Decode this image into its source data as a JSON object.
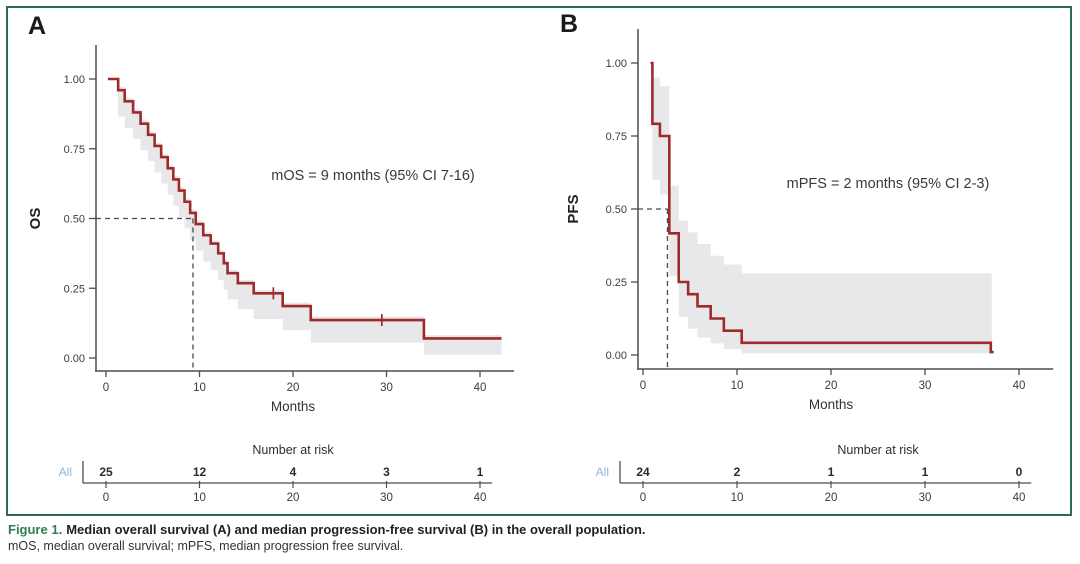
{
  "figure": {
    "caption": {
      "label": "Figure 1.",
      "title": "Median overall survival (A) and median progression-free survival (B) in the overall population.",
      "subtitle": "mOS, median overall survival; mPFS, median progression free survival."
    },
    "colors": {
      "border": "#2c6b50",
      "caption_label": "#2e7d4f",
      "curve": "#9e2a2b",
      "band": "#e8e8ea",
      "axis": "#4d4d4d",
      "text": "#3c3c3c",
      "risk_value": "#2b2b2b",
      "risk_group": "#92b4d8",
      "dashed": "#4a4a4a"
    }
  },
  "chart_data": [
    {
      "type": "line",
      "subtype": "kaplan-meier-step",
      "panel_label": "A",
      "ylabel": "OS",
      "xlabel": "Months",
      "annotation": "mOS = 9 months (95% CI 7-16)",
      "xlim": [
        0,
        43
      ],
      "ylim": [
        0,
        1
      ],
      "xticks": [
        0,
        10,
        20,
        30,
        40
      ],
      "xtick_labels": [
        "0",
        "10",
        "20",
        "30",
        "40"
      ],
      "ytick_vals": [
        1.0,
        0.75,
        0.5,
        0.25,
        0.0
      ],
      "ytick_labels": [
        "1.00",
        "0.75",
        "0.50",
        "0.25",
        "0.00"
      ],
      "median_time": 9,
      "median_survival": 0.5,
      "median_line_time": 9.3,
      "steps": [
        [
          0.2,
          1.0
        ],
        [
          1.3,
          0.96
        ],
        [
          2.0,
          0.92
        ],
        [
          2.9,
          0.88
        ],
        [
          3.7,
          0.84
        ],
        [
          4.5,
          0.8
        ],
        [
          5.2,
          0.76
        ],
        [
          5.9,
          0.72
        ],
        [
          6.6,
          0.68
        ],
        [
          7.2,
          0.64
        ],
        [
          7.8,
          0.6
        ],
        [
          8.4,
          0.56
        ],
        [
          9.0,
          0.52
        ],
        [
          9.6,
          0.48
        ],
        [
          10.4,
          0.44
        ],
        [
          11.2,
          0.41
        ],
        [
          12.0,
          0.375
        ],
        [
          12.6,
          0.34
        ],
        [
          13.0,
          0.304
        ],
        [
          14.1,
          0.268
        ],
        [
          15.8,
          0.232
        ],
        [
          18.9,
          0.186
        ],
        [
          21.9,
          0.136
        ],
        [
          34.0,
          0.07
        ]
      ],
      "end_time": 42.3,
      "censor_marks": [
        [
          17.9,
          0.232
        ],
        [
          29.5,
          0.136
        ]
      ],
      "ci_band": [
        [
          0.2,
          1.0,
          1.0
        ],
        [
          1.3,
          0.865,
          0.972
        ],
        [
          2.0,
          0.825,
          0.932
        ],
        [
          2.9,
          0.785,
          0.892
        ],
        [
          3.7,
          0.745,
          0.852
        ],
        [
          4.5,
          0.705,
          0.812
        ],
        [
          5.2,
          0.665,
          0.772
        ],
        [
          5.9,
          0.625,
          0.732
        ],
        [
          6.6,
          0.585,
          0.692
        ],
        [
          7.2,
          0.545,
          0.652
        ],
        [
          7.8,
          0.505,
          0.612
        ],
        [
          8.4,
          0.465,
          0.572
        ],
        [
          9.0,
          0.425,
          0.532
        ],
        [
          9.6,
          0.385,
          0.492
        ],
        [
          10.4,
          0.345,
          0.452
        ],
        [
          11.2,
          0.315,
          0.422
        ],
        [
          12.0,
          0.28,
          0.387
        ],
        [
          12.6,
          0.245,
          0.352
        ],
        [
          13.0,
          0.21,
          0.316
        ],
        [
          14.1,
          0.175,
          0.28
        ],
        [
          15.8,
          0.14,
          0.244
        ],
        [
          18.9,
          0.1,
          0.198
        ],
        [
          21.9,
          0.055,
          0.148
        ],
        [
          34.0,
          0.012,
          0.082
        ]
      ],
      "band_end": 42.3,
      "number_at_risk": {
        "title": "Number at risk",
        "group": "All",
        "times": [
          0,
          10,
          20,
          30,
          40
        ],
        "values": [
          "25",
          "12",
          "4",
          "3",
          "1"
        ],
        "axis_labels": [
          "0",
          "10",
          "20",
          "30",
          "40"
        ]
      }
    },
    {
      "type": "line",
      "subtype": "kaplan-meier-step",
      "panel_label": "B",
      "ylabel": "PFS",
      "xlabel": "Months",
      "annotation": "mPFS = 2 months (95% CI 2-3)",
      "xlim": [
        0,
        43
      ],
      "ylim": [
        0,
        1
      ],
      "xticks": [
        0,
        10,
        20,
        30,
        40
      ],
      "xtick_labels": [
        "0",
        "10",
        "20",
        "30",
        "40"
      ],
      "ytick_vals": [
        1.0,
        0.75,
        0.5,
        0.25,
        0.0
      ],
      "ytick_labels": [
        "1.00",
        "0.75",
        "0.50",
        "0.25",
        "0.00"
      ],
      "median_time": 2,
      "median_survival": 0.5,
      "median_line_time": 2.6,
      "steps": [
        [
          0.8,
          1.0
        ],
        [
          1.0,
          0.7917
        ],
        [
          1.8,
          0.75
        ],
        [
          2.8,
          0.4167
        ],
        [
          3.8,
          0.25
        ],
        [
          4.8,
          0.2083
        ],
        [
          5.8,
          0.1667
        ],
        [
          7.2,
          0.125
        ],
        [
          8.6,
          0.0833
        ],
        [
          10.5,
          0.0417
        ],
        [
          37.0,
          0.01
        ]
      ],
      "end_time": 37.3,
      "censor_marks": [],
      "ci_band": [
        [
          0.8,
          1.0,
          1.0
        ],
        [
          1.0,
          0.6,
          0.95
        ],
        [
          1.8,
          0.55,
          0.92
        ],
        [
          2.8,
          0.27,
          0.58
        ],
        [
          3.8,
          0.13,
          0.46
        ],
        [
          4.8,
          0.09,
          0.42
        ],
        [
          5.8,
          0.06,
          0.38
        ],
        [
          7.2,
          0.04,
          0.34
        ],
        [
          8.6,
          0.02,
          0.31
        ],
        [
          10.5,
          0.005,
          0.28
        ]
      ],
      "band_end": 37.1,
      "number_at_risk": {
        "title": "Number at risk",
        "group": "All",
        "times": [
          0,
          10,
          20,
          30,
          40
        ],
        "values": [
          "24",
          "2",
          "1",
          "1",
          "0"
        ],
        "axis_labels": [
          "0",
          "10",
          "20",
          "30",
          "40"
        ]
      }
    }
  ]
}
